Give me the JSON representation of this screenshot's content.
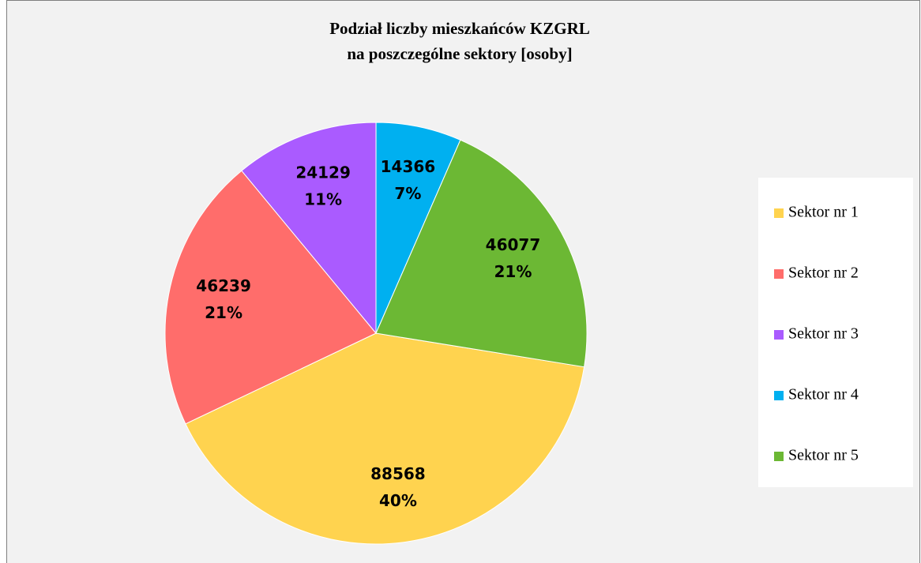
{
  "chart_data": {
    "type": "pie",
    "title_lines": [
      "Podział  liczby mieszkańców KZGRL",
      "na poszczególne sektory [osoby]"
    ],
    "categories": [
      "Sektor nr 1",
      "Sektor nr 2",
      "Sektor nr 3",
      "Sektor nr 4",
      "Sektor nr 5"
    ],
    "values": [
      88568,
      46239,
      24129,
      14366,
      46077
    ],
    "percent_labels": [
      "40%",
      "21%",
      "11%",
      "7%",
      "21%"
    ],
    "colors": [
      "#ffd34f",
      "#ff6d6b",
      "#aa5bff",
      "#00b0f0",
      "#6cb834"
    ],
    "legend": "right"
  }
}
